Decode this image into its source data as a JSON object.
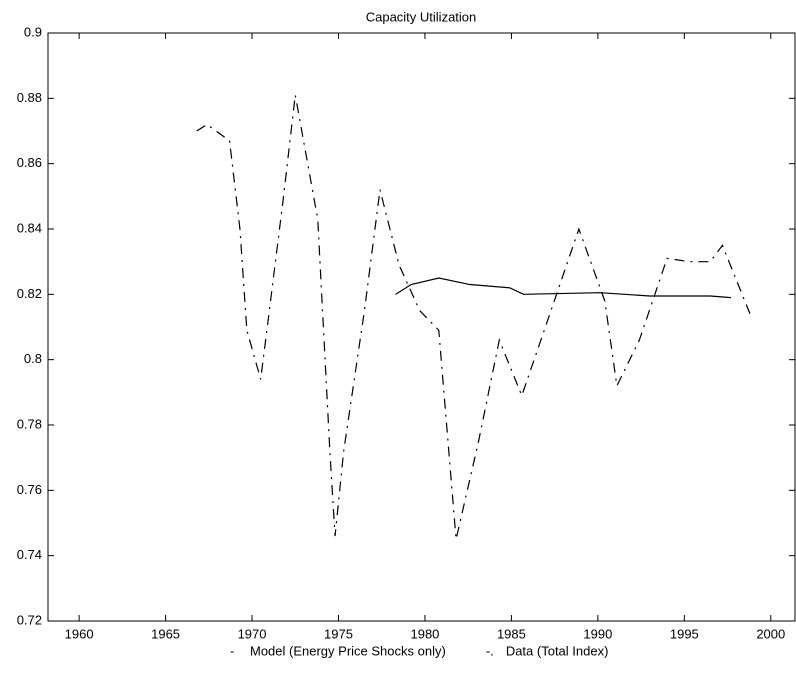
{
  "chart_data": {
    "type": "line",
    "title": "Capacity Utilization",
    "xlim": [
      1958.2,
      2001.4
    ],
    "xticks": [
      1960,
      1965,
      1970,
      1975,
      1980,
      1985,
      1990,
      1995,
      2000
    ],
    "ylim": [
      0.72,
      0.9
    ],
    "yticks": [
      0.72,
      0.74,
      0.76,
      0.78,
      0.8,
      0.82,
      0.84,
      0.86,
      0.88,
      0.9
    ],
    "series": [
      {
        "name": "Model (Energy Price Shocks only)",
        "legend_marker": "-",
        "color": "#000000",
        "dash": "solid",
        "x": [
          1978.3,
          1979.2,
          1980.8,
          1982.6,
          1984.9,
          1985.7,
          1990.1,
          1993.0,
          1996.5,
          1997.7
        ],
        "values": [
          0.82,
          0.823,
          0.825,
          0.823,
          0.822,
          0.82,
          0.8205,
          0.8195,
          0.8195,
          0.819
        ]
      },
      {
        "name": "Data (Total Index)",
        "legend_marker": "-.",
        "color": "#000000",
        "dash": "dashdot",
        "x": [
          1966.8,
          1967.4,
          1968.7,
          1969.3,
          1969.7,
          1970.5,
          1971.0,
          1971.8,
          1972.5,
          1973.8,
          1974.5,
          1974.8,
          1975.3,
          1976.5,
          1977.4,
          1978.5,
          1979.7,
          1980.8,
          1981.8,
          1983.1,
          1984.3,
          1985.6,
          1986.9,
          1988.9,
          1990.4,
          1991.1,
          1992.4,
          1994.0,
          1995.3,
          1996.5,
          1997.2,
          1998.8
        ],
        "values": [
          0.87,
          0.872,
          0.867,
          0.84,
          0.809,
          0.794,
          0.815,
          0.849,
          0.881,
          0.843,
          0.772,
          0.746,
          0.772,
          0.815,
          0.852,
          0.829,
          0.815,
          0.809,
          0.745,
          0.775,
          0.806,
          0.789,
          0.809,
          0.84,
          0.818,
          0.792,
          0.806,
          0.831,
          0.83,
          0.83,
          0.835,
          0.814
        ]
      }
    ]
  }
}
